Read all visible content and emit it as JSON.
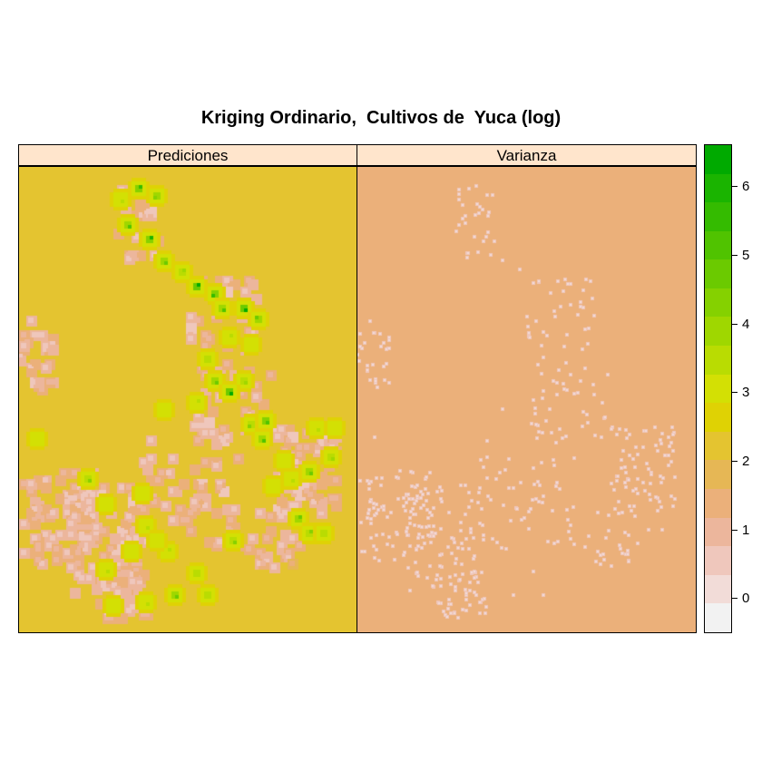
{
  "chart_data": {
    "type": "heatmap",
    "title": "Kriging Ordinario,  Cultivos de  Yuca (log)",
    "panels": [
      {
        "name": "Prediciones",
        "background_value": 2.2
      },
      {
        "name": "Varianza",
        "background_value": 1.4
      }
    ],
    "colorkey": {
      "colors": [
        "#f2f2f2",
        "#f2dcd8",
        "#efc7bc",
        "#ecb69c",
        "#ebb07a",
        "#e6b755",
        "#e4c430",
        "#dfd204",
        "#d3e004",
        "#b9dc02",
        "#9fd700",
        "#85d100",
        "#6bca00",
        "#50c300",
        "#34bb00",
        "#1ab400",
        "#00aa00"
      ],
      "breaks": [
        -0.5,
        6.6
      ],
      "ticks": [
        0,
        1,
        2,
        3,
        4,
        5,
        6
      ],
      "range": [
        -0.5,
        6.6
      ]
    },
    "prediction_hotspots": [
      [
        0.35,
        0.04,
        5.6
      ],
      [
        0.4,
        0.06,
        4.5
      ],
      [
        0.3,
        0.07,
        3.5
      ],
      [
        0.32,
        0.12,
        5.0
      ],
      [
        0.38,
        0.15,
        6.0
      ],
      [
        0.43,
        0.2,
        4.6
      ],
      [
        0.48,
        0.22,
        3.8
      ],
      [
        0.52,
        0.25,
        6.2
      ],
      [
        0.57,
        0.27,
        5.4
      ],
      [
        0.6,
        0.3,
        5.0
      ],
      [
        0.66,
        0.3,
        6.2
      ],
      [
        0.7,
        0.32,
        4.8
      ],
      [
        0.62,
        0.36,
        3.5
      ],
      [
        0.68,
        0.38,
        3.2
      ],
      [
        0.55,
        0.41,
        3.6
      ],
      [
        0.58,
        0.46,
        4.8
      ],
      [
        0.66,
        0.46,
        3.9
      ],
      [
        0.62,
        0.48,
        6.6
      ],
      [
        0.52,
        0.5,
        3.3
      ],
      [
        0.43,
        0.52,
        3.0
      ],
      [
        0.68,
        0.55,
        4.2
      ],
      [
        0.73,
        0.54,
        5.3
      ],
      [
        0.72,
        0.58,
        5.0
      ],
      [
        0.88,
        0.56,
        3.4
      ],
      [
        0.92,
        0.62,
        3.8
      ],
      [
        0.78,
        0.63,
        3.2
      ],
      [
        0.86,
        0.65,
        4.6
      ],
      [
        0.8,
        0.67,
        3.4
      ],
      [
        0.05,
        0.58,
        3.2
      ],
      [
        0.2,
        0.67,
        4.2
      ],
      [
        0.25,
        0.72,
        3.1
      ],
      [
        0.82,
        0.75,
        4.8
      ],
      [
        0.86,
        0.78,
        4.2
      ],
      [
        0.9,
        0.78,
        3.6
      ],
      [
        0.63,
        0.8,
        4.2
      ],
      [
        0.37,
        0.77,
        3.4
      ],
      [
        0.44,
        0.82,
        3.3
      ],
      [
        0.52,
        0.87,
        3.6
      ],
      [
        0.25,
        0.86,
        3.3
      ],
      [
        0.46,
        0.92,
        4.9
      ],
      [
        0.37,
        0.93,
        3.4
      ],
      [
        0.27,
        0.94,
        3.1
      ],
      [
        0.55,
        0.92,
        3.6
      ],
      [
        0.4,
        0.8,
        3.0
      ],
      [
        0.75,
        0.68,
        3.0
      ],
      [
        0.33,
        0.82,
        3.0
      ],
      [
        0.93,
        0.56,
        3.2
      ],
      [
        0.36,
        0.7,
        3.0
      ]
    ]
  }
}
